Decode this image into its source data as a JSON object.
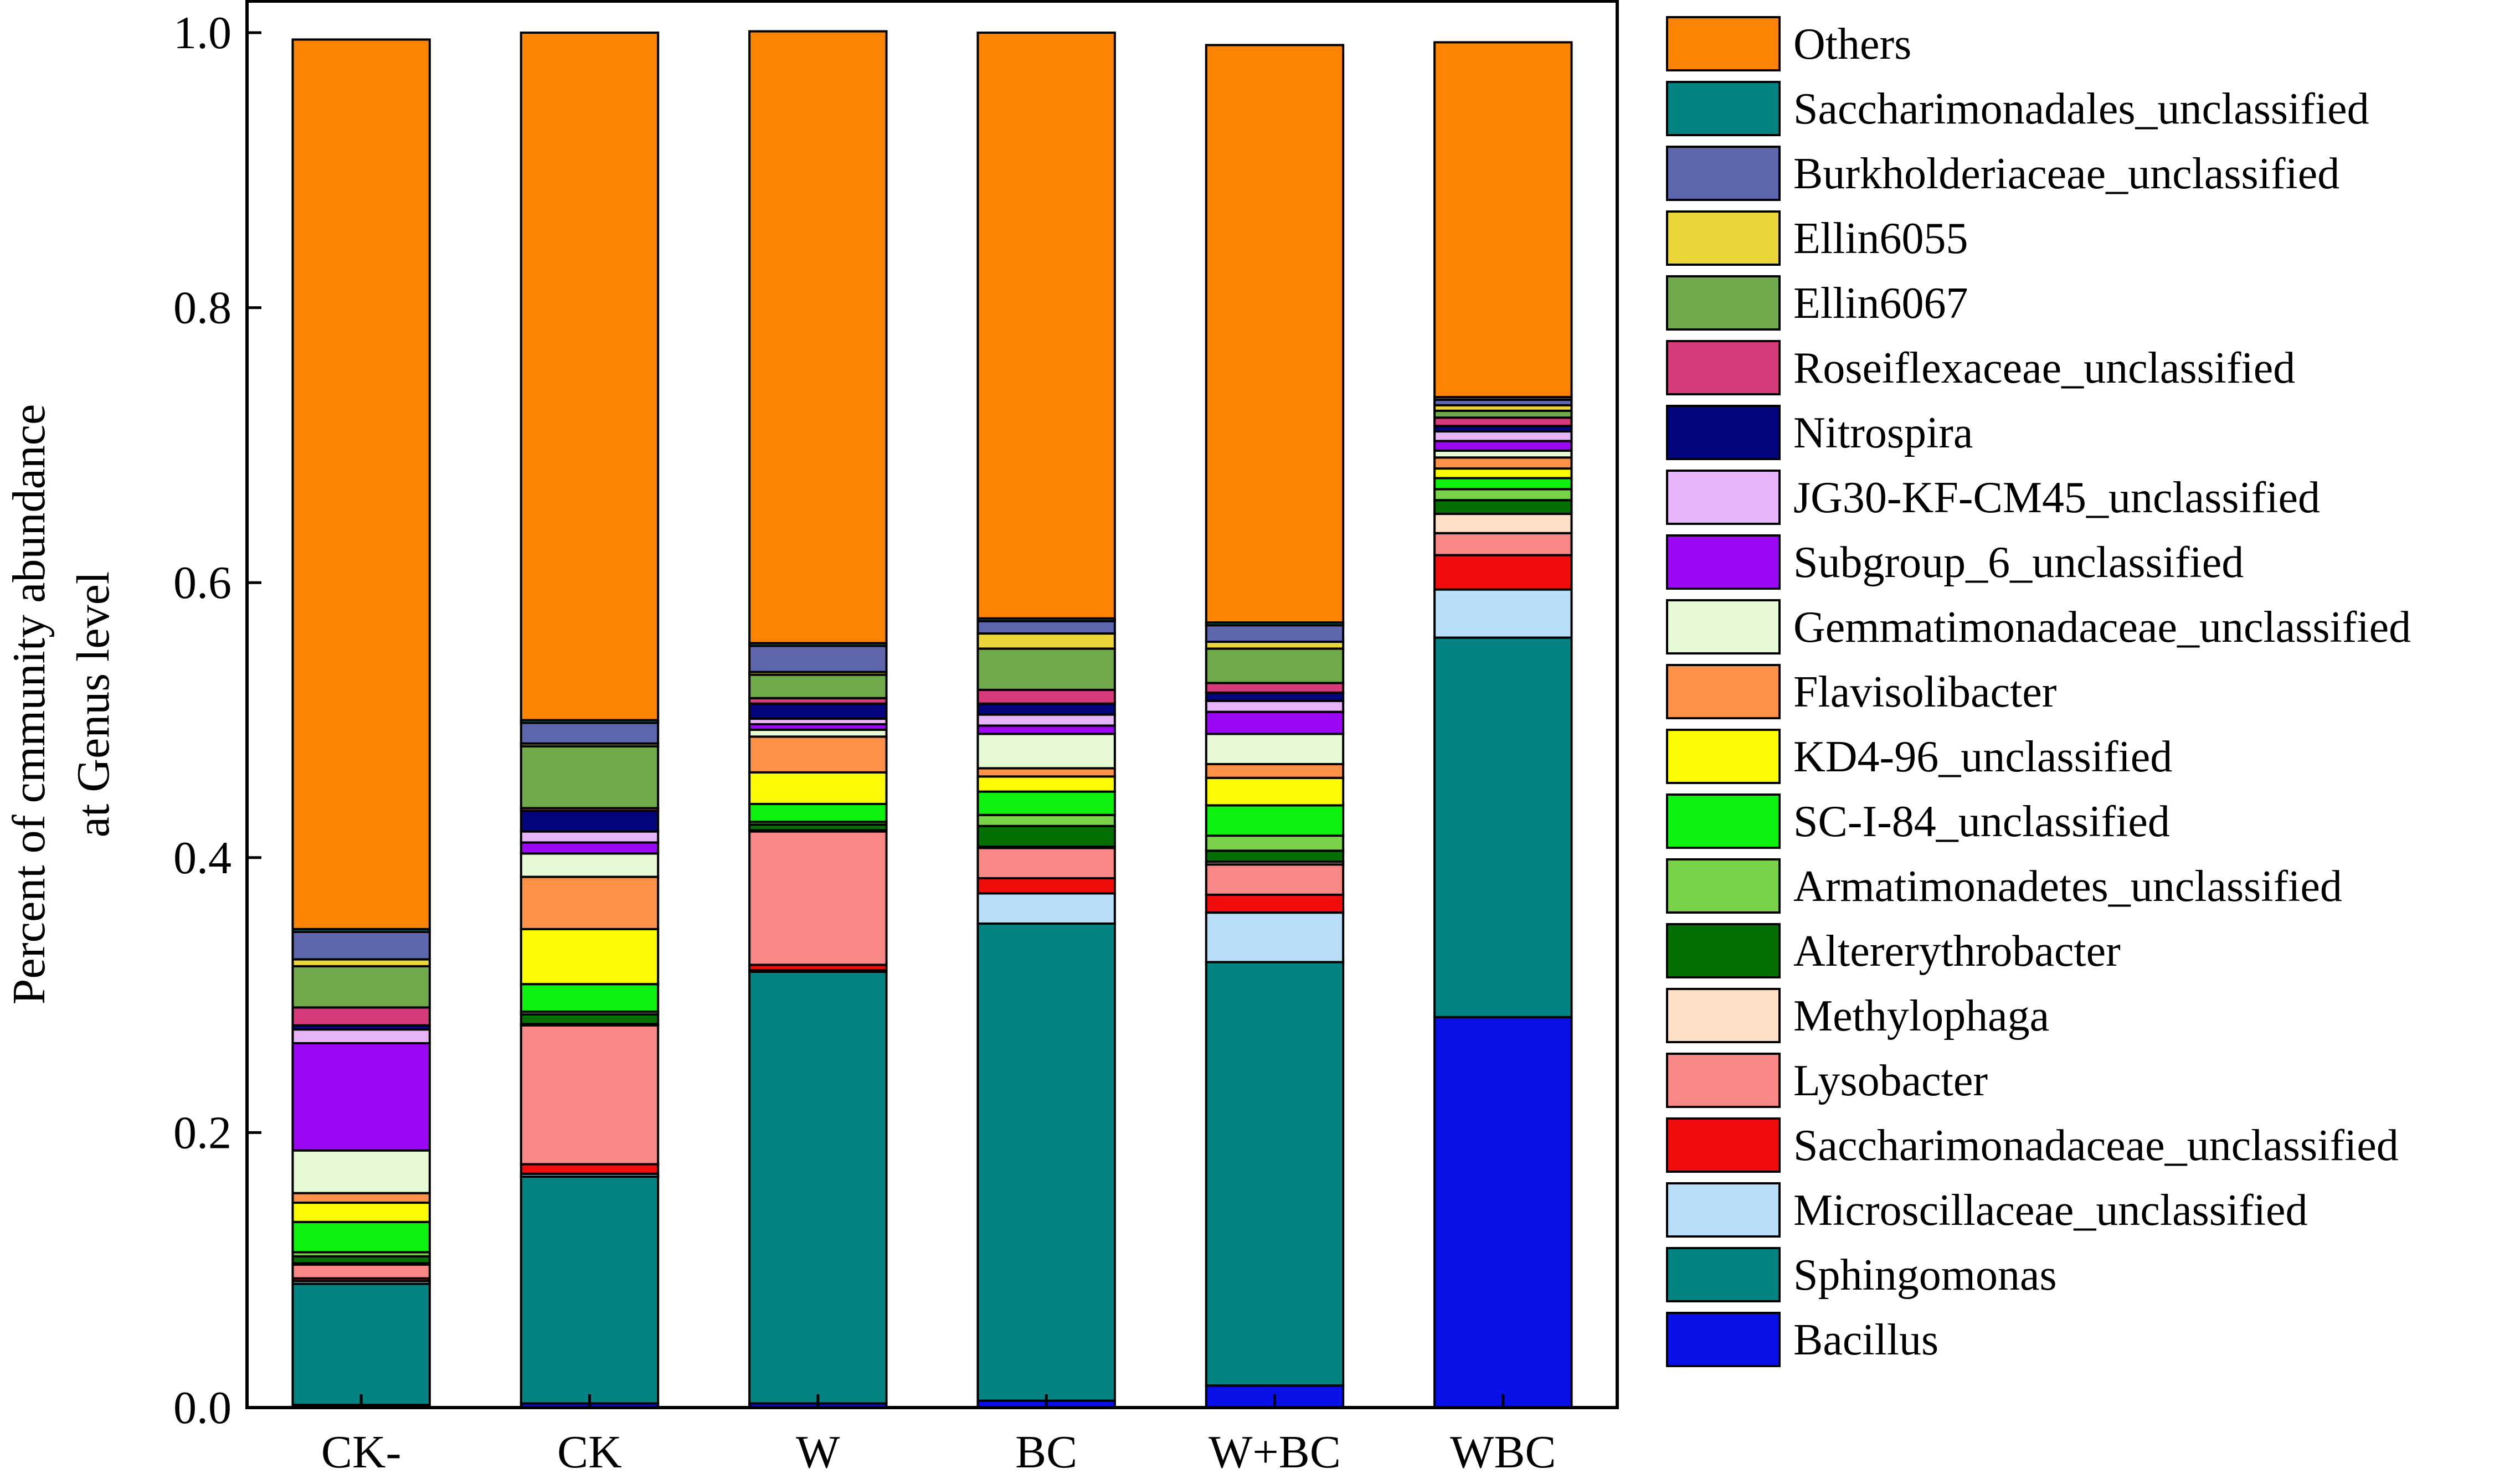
{
  "chart_data": {
    "type": "bar",
    "stacked": true,
    "ylabel_line1": "Percent of cmmunity abundance",
    "ylabel_line2": "at Genus level",
    "xlabel": "",
    "ylim": [
      0,
      1.0
    ],
    "yticks": [
      0.0,
      0.2,
      0.4,
      0.6,
      0.8,
      1.0
    ],
    "ytick_labels": [
      "0.0",
      "0.2",
      "0.4",
      "0.6",
      "0.8",
      "1.0"
    ],
    "categories": [
      "CK-",
      "CK",
      "W",
      "BC",
      "W+BC",
      "WBC"
    ],
    "legend_order": [
      "Others",
      "Saccharimonadales_unclassified",
      "Burkholderiaceae_unclassified",
      "Ellin6055",
      "Ellin6067",
      "Roseiflexaceae_unclassified",
      "Nitrospira",
      "JG30-KF-CM45_unclassified",
      "Subgroup_6_unclassified",
      "Gemmatimonadaceae_unclassified",
      "Flavisolibacter",
      "KD4-96_unclassified",
      "SC-I-84_unclassified",
      "Armatimonadetes_unclassified",
      "Altererythrobacter",
      "Methylophaga",
      "Lysobacter",
      "Saccharimonadaceae_unclassified",
      "Microscillaceae_unclassified",
      "Sphingomonas",
      "Bacillus"
    ],
    "series": [
      {
        "name": "Bacillus",
        "color": "#0a10e8",
        "values": [
          0.002,
          0.003,
          0.003,
          0.005,
          0.016,
          0.284
        ]
      },
      {
        "name": "Sphingomonas",
        "color": "#048383",
        "values": [
          0.088,
          0.165,
          0.314,
          0.347,
          0.308,
          0.276
        ]
      },
      {
        "name": "Microscillaceae_unclassified",
        "color": "#b8def8",
        "values": [
          0.002,
          0.002,
          0.001,
          0.022,
          0.036,
          0.035
        ]
      },
      {
        "name": "Saccharimonadaceae_unclassified",
        "color": "#f20d0d",
        "values": [
          0.002,
          0.007,
          0.004,
          0.011,
          0.013,
          0.025
        ]
      },
      {
        "name": "Lysobacter",
        "color": "#f88786",
        "values": [
          0.01,
          0.101,
          0.097,
          0.022,
          0.022,
          0.016
        ]
      },
      {
        "name": "Methylophaga",
        "color": "#fde0c6",
        "values": [
          0.001,
          0.001,
          0.001,
          0.001,
          0.002,
          0.014
        ]
      },
      {
        "name": "Altererythrobacter",
        "color": "#047004",
        "values": [
          0.005,
          0.007,
          0.004,
          0.015,
          0.008,
          0.01
        ]
      },
      {
        "name": "Armatimonadetes_unclassified",
        "color": "#7ad24a",
        "values": [
          0.003,
          0.002,
          0.002,
          0.008,
          0.011,
          0.008
        ]
      },
      {
        "name": "SC-I-84_unclassified",
        "color": "#0ef00e",
        "values": [
          0.022,
          0.02,
          0.013,
          0.017,
          0.022,
          0.008
        ]
      },
      {
        "name": "KD4-96_unclassified",
        "color": "#fdfb04",
        "values": [
          0.014,
          0.04,
          0.023,
          0.011,
          0.02,
          0.007
        ]
      },
      {
        "name": "Flavisolibacter",
        "color": "#fc9147",
        "values": [
          0.007,
          0.038,
          0.026,
          0.006,
          0.01,
          0.008
        ]
      },
      {
        "name": "Gemmatimonadaceae_unclassified",
        "color": "#e6fad6",
        "values": [
          0.031,
          0.017,
          0.005,
          0.025,
          0.022,
          0.005
        ]
      },
      {
        "name": "Subgroup_6_unclassified",
        "color": "#9c08f4",
        "values": [
          0.078,
          0.008,
          0.004,
          0.006,
          0.016,
          0.007
        ]
      },
      {
        "name": "JG30-KF-CM45_unclassified",
        "color": "#e6b4f8",
        "values": [
          0.01,
          0.008,
          0.004,
          0.008,
          0.008,
          0.007
        ]
      },
      {
        "name": "Nitrospira",
        "color": "#04047c",
        "values": [
          0.003,
          0.015,
          0.011,
          0.008,
          0.006,
          0.004
        ]
      },
      {
        "name": "Roseiflexaceae_unclassified",
        "color": "#d63c7c",
        "values": [
          0.013,
          0.002,
          0.004,
          0.01,
          0.007,
          0.006
        ]
      },
      {
        "name": "Ellin6067",
        "color": "#70aa4a",
        "values": [
          0.03,
          0.045,
          0.017,
          0.03,
          0.025,
          0.005
        ]
      },
      {
        "name": "Ellin6055",
        "color": "#ebd53a",
        "values": [
          0.005,
          0.002,
          0.002,
          0.011,
          0.005,
          0.004
        ]
      },
      {
        "name": "Burkholderiaceae_unclassified",
        "color": "#5e67ad",
        "values": [
          0.02,
          0.015,
          0.019,
          0.009,
          0.012,
          0.004
        ]
      },
      {
        "name": "Saccharimonadales_unclassified",
        "color": "#048383",
        "values": [
          0.002,
          0.002,
          0.002,
          0.002,
          0.002,
          0.002
        ]
      },
      {
        "name": "Others",
        "color": "#fc8304",
        "values": [
          0.647,
          0.5,
          0.445,
          0.426,
          0.42,
          0.258
        ]
      }
    ]
  }
}
